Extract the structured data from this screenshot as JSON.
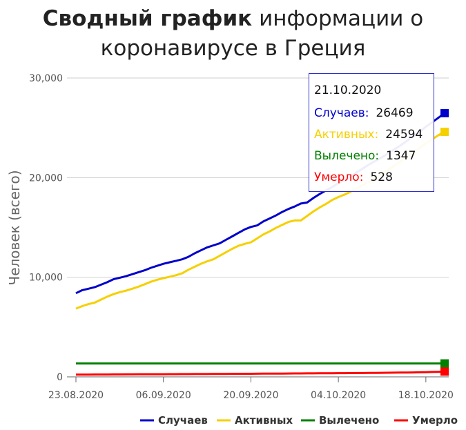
{
  "title": {
    "bold": "Сводный график",
    "rest": "информации о коронавирусе в Греция"
  },
  "chart_data": {
    "type": "line",
    "title": "Сводный график информации о коронавирусе в Греция",
    "ylabel": "Человек (всего)",
    "xlabel": "",
    "ylim": [
      0,
      30000
    ],
    "yticks": [
      0,
      10000,
      20000,
      30000
    ],
    "ytick_labels": [
      "0",
      "10,000",
      "20,000",
      "30,000"
    ],
    "xticks": [
      "23.08.2020",
      "06.09.2020",
      "20.09.2020",
      "04.10.2020",
      "18.10.2020"
    ],
    "grid": true,
    "legend_position": "bottom-right",
    "x": [
      "23.08.2020",
      "24.08.2020",
      "25.08.2020",
      "26.08.2020",
      "27.08.2020",
      "28.08.2020",
      "29.08.2020",
      "30.08.2020",
      "31.08.2020",
      "01.09.2020",
      "02.09.2020",
      "03.09.2020",
      "04.09.2020",
      "05.09.2020",
      "06.09.2020",
      "07.09.2020",
      "08.09.2020",
      "09.09.2020",
      "10.09.2020",
      "11.09.2020",
      "12.09.2020",
      "13.09.2020",
      "14.09.2020",
      "15.09.2020",
      "16.09.2020",
      "17.09.2020",
      "18.09.2020",
      "19.09.2020",
      "20.09.2020",
      "21.09.2020",
      "22.09.2020",
      "23.09.2020",
      "24.09.2020",
      "25.09.2020",
      "26.09.2020",
      "27.09.2020",
      "28.09.2020",
      "29.09.2020",
      "30.09.2020",
      "01.10.2020",
      "02.10.2020",
      "03.10.2020",
      "04.10.2020",
      "05.10.2020",
      "06.10.2020",
      "07.10.2020",
      "08.10.2020",
      "09.10.2020",
      "10.10.2020",
      "11.10.2020",
      "12.10.2020",
      "13.10.2020",
      "14.10.2020",
      "15.10.2020",
      "16.10.2020",
      "17.10.2020",
      "18.10.2020",
      "19.10.2020",
      "20.10.2020",
      "21.10.2020"
    ],
    "series": [
      {
        "name": "Случаев",
        "color": "#0000cc",
        "values": [
          8400,
          8700,
          8850,
          9000,
          9250,
          9500,
          9800,
          9950,
          10100,
          10300,
          10500,
          10700,
          10950,
          11150,
          11350,
          11500,
          11650,
          11800,
          12050,
          12400,
          12700,
          13000,
          13200,
          13400,
          13750,
          14100,
          14450,
          14800,
          15050,
          15200,
          15600,
          15900,
          16200,
          16550,
          16850,
          17100,
          17400,
          17500,
          17950,
          18350,
          18700,
          19050,
          19450,
          19750,
          20100,
          20550,
          20950,
          21350,
          21700,
          22050,
          22450,
          22850,
          23250,
          23700,
          24150,
          24600,
          25100,
          25550,
          26000,
          26469
        ]
      },
      {
        "name": "Активных",
        "color": "#f5d000",
        "values": [
          6850,
          7100,
          7300,
          7450,
          7750,
          8050,
          8300,
          8500,
          8650,
          8850,
          9050,
          9300,
          9550,
          9750,
          9900,
          10050,
          10200,
          10400,
          10750,
          11050,
          11350,
          11600,
          11800,
          12150,
          12500,
          12850,
          13150,
          13350,
          13500,
          13900,
          14300,
          14600,
          14950,
          15250,
          15550,
          15700,
          15700,
          16150,
          16600,
          17000,
          17350,
          17750,
          18050,
          18300,
          18600,
          18950,
          19300,
          19650,
          20000,
          20400,
          20800,
          21200,
          21650,
          22100,
          22550,
          23000,
          23450,
          23850,
          24250,
          24594
        ]
      },
      {
        "name": "Вылечено",
        "color": "#008000",
        "values": [
          1347,
          1347,
          1347,
          1347,
          1347,
          1347,
          1347,
          1347,
          1347,
          1347,
          1347,
          1347,
          1347,
          1347,
          1347,
          1347,
          1347,
          1347,
          1347,
          1347,
          1347,
          1347,
          1347,
          1347,
          1347,
          1347,
          1347,
          1347,
          1347,
          1347,
          1347,
          1347,
          1347,
          1347,
          1347,
          1347,
          1347,
          1347,
          1347,
          1347,
          1347,
          1347,
          1347,
          1347,
          1347,
          1347,
          1347,
          1347,
          1347,
          1347,
          1347,
          1347,
          1347,
          1347,
          1347,
          1347,
          1347,
          1347,
          1347,
          1347
        ]
      },
      {
        "name": "Умерло",
        "color": "#ff0000",
        "values": [
          226,
          228,
          231,
          234,
          236,
          239,
          242,
          245,
          248,
          251,
          254,
          257,
          260,
          263,
          266,
          269,
          272,
          275,
          278,
          281,
          284,
          287,
          291,
          295,
          299,
          303,
          307,
          311,
          315,
          319,
          323,
          327,
          331,
          335,
          339,
          343,
          347,
          351,
          355,
          359,
          363,
          367,
          371,
          376,
          381,
          386,
          391,
          396,
          402,
          408,
          414,
          421,
          428,
          436,
          446,
          458,
          472,
          490,
          508,
          528
        ]
      }
    ],
    "tooltip": {
      "date": "21.10.2020",
      "rows": [
        {
          "label": "Случаев:",
          "value": "26469",
          "color": "#0000cc"
        },
        {
          "label": "Активных:",
          "value": "24594",
          "color": "#f5d000"
        },
        {
          "label": "Вылечено:",
          "value": "1347",
          "color": "#008000"
        },
        {
          "label": "Умерло:",
          "value": "528",
          "color": "#ff0000"
        }
      ]
    }
  }
}
